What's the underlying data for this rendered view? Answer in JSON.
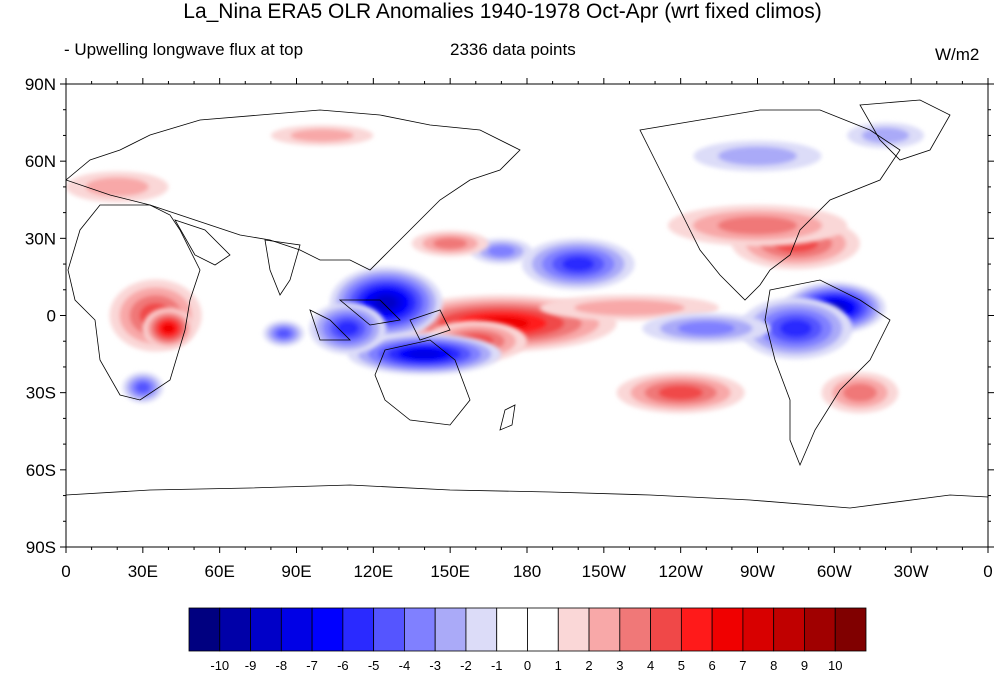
{
  "title": "La_Nina ERA5 OLR Anomalies 1940-1978 Oct-Apr (wrt fixed climos)",
  "left_subtitle": "- Upwelling longwave flux at top",
  "center_subtitle": "2336 data points",
  "units": "W/m2",
  "lat_labels": [
    "90N",
    "60N",
    "30N",
    "0",
    "30S",
    "60S",
    "90S"
  ],
  "lon_labels": [
    "0",
    "30E",
    "60E",
    "90E",
    "120E",
    "150E",
    "180",
    "150W",
    "120W",
    "90W",
    "60W",
    "30W",
    "0"
  ],
  "colorbar": {
    "colors": [
      "#000080",
      "#0000a8",
      "#0000c8",
      "#0000e6",
      "#0000ff",
      "#2a2aff",
      "#5555ff",
      "#8080ff",
      "#aaaaf8",
      "#dcdcf8",
      "#ffffff",
      "#ffffff",
      "#fad7d7",
      "#f8a8a8",
      "#f07878",
      "#f04848",
      "#ff1a1a",
      "#f00000",
      "#d80000",
      "#c00000",
      "#a00000",
      "#800000"
    ],
    "labels": [
      "-10",
      "-9",
      "-8",
      "-7",
      "-6",
      "-5",
      "-4",
      "-3",
      "-2",
      "-1",
      "0",
      "1",
      "2",
      "3",
      "4",
      "5",
      "6",
      "7",
      "8",
      "9",
      "10"
    ]
  },
  "anomaly_blobs": [
    {
      "lon": 180,
      "lat": -1,
      "rx": 30,
      "ry": 6,
      "value": 10
    },
    {
      "lon": 170,
      "lat": -3,
      "rx": 45,
      "ry": 11,
      "value": 6
    },
    {
      "lon": 160,
      "lat": -10,
      "rx": 20,
      "ry": 8,
      "value": 4
    },
    {
      "lon": 220,
      "lat": 3,
      "rx": 35,
      "ry": 5,
      "value": 2
    },
    {
      "lon": 125,
      "lat": 5,
      "rx": 22,
      "ry": 14,
      "value": -8
    },
    {
      "lon": 140,
      "lat": -15,
      "rx": 30,
      "ry": 8,
      "value": -7
    },
    {
      "lon": 110,
      "lat": -5,
      "rx": 15,
      "ry": 10,
      "value": -5
    },
    {
      "lon": 200,
      "lat": 20,
      "rx": 22,
      "ry": 10,
      "value": -5
    },
    {
      "lon": 170,
      "lat": 25,
      "rx": 12,
      "ry": 5,
      "value": -3
    },
    {
      "lon": 300,
      "lat": 3,
      "rx": 20,
      "ry": 10,
      "value": -8
    },
    {
      "lon": 285,
      "lat": -5,
      "rx": 22,
      "ry": 12,
      "value": -5
    },
    {
      "lon": 250,
      "lat": -5,
      "rx": 25,
      "ry": 6,
      "value": -3
    },
    {
      "lon": 85,
      "lat": -7,
      "rx": 8,
      "ry": 5,
      "value": -4
    },
    {
      "lon": 30,
      "lat": -28,
      "rx": 8,
      "ry": 6,
      "value": -4
    },
    {
      "lon": 35,
      "lat": 0,
      "rx": 18,
      "ry": 14,
      "value": 4
    },
    {
      "lon": 40,
      "lat": -5,
      "rx": 10,
      "ry": 8,
      "value": 6
    },
    {
      "lon": 285,
      "lat": 28,
      "rx": 25,
      "ry": 10,
      "value": 4
    },
    {
      "lon": 270,
      "lat": 35,
      "rx": 35,
      "ry": 8,
      "value": 3
    },
    {
      "lon": 240,
      "lat": -30,
      "rx": 25,
      "ry": 8,
      "value": 4
    },
    {
      "lon": 310,
      "lat": -30,
      "rx": 15,
      "ry": 8,
      "value": 3
    },
    {
      "lon": 150,
      "lat": 28,
      "rx": 15,
      "ry": 5,
      "value": 3
    },
    {
      "lon": 20,
      "lat": 50,
      "rx": 20,
      "ry": 6,
      "value": 2
    },
    {
      "lon": 100,
      "lat": 70,
      "rx": 20,
      "ry": 4,
      "value": 2
    },
    {
      "lon": 270,
      "lat": 62,
      "rx": 25,
      "ry": 6,
      "value": -2
    },
    {
      "lon": 320,
      "lat": 70,
      "rx": 15,
      "ry": 5,
      "value": -2
    }
  ]
}
